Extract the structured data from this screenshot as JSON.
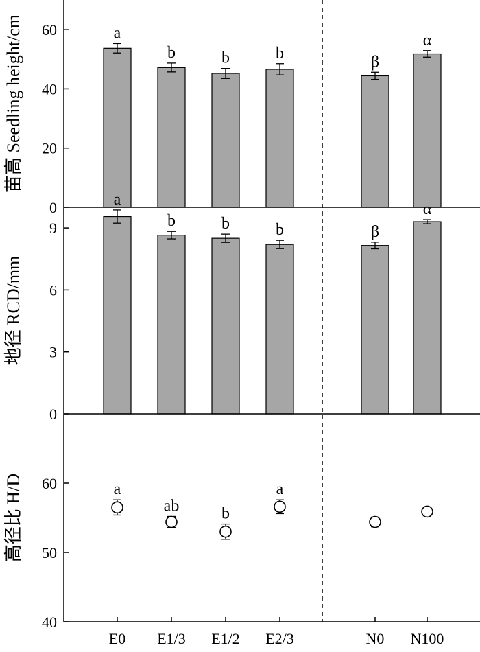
{
  "chart_data": {
    "type": "bar",
    "categories": [
      "E0",
      "E1/3",
      "E1/2",
      "E2/3",
      "N0",
      "N100"
    ],
    "group_divider_between": [
      "E2/3",
      "N0"
    ],
    "panels": [
      {
        "type": "bar",
        "ylabel": "苗高 Seedling height/cm",
        "ylim": [
          0,
          70
        ],
        "yticks": [
          0,
          20,
          40,
          60
        ],
        "values": [
          53.7,
          47.2,
          45.2,
          46.6,
          44.4,
          51.8
        ],
        "errors": [
          1.6,
          1.5,
          1.7,
          1.9,
          1.2,
          1.1
        ],
        "letters": [
          "a",
          "b",
          "b",
          "b",
          "β",
          "α"
        ]
      },
      {
        "type": "bar",
        "ylabel": "地径 RCD/mm",
        "ylim": [
          0,
          10
        ],
        "yticks": [
          0,
          3,
          6,
          9
        ],
        "values": [
          9.55,
          8.65,
          8.5,
          8.2,
          8.15,
          9.3
        ],
        "errors": [
          0.32,
          0.18,
          0.2,
          0.2,
          0.16,
          0.1
        ],
        "letters": [
          "a",
          "b",
          "b",
          "b",
          "β",
          "α"
        ]
      },
      {
        "type": "scatter",
        "ylabel": "高径比 H/D",
        "ylim": [
          40,
          70
        ],
        "yticks": [
          40,
          50,
          60
        ],
        "values": [
          56.5,
          54.4,
          53.0,
          56.6,
          54.4,
          55.9
        ],
        "errors": [
          1.1,
          0.8,
          1.1,
          1.0,
          0.7,
          0.6
        ],
        "letters": [
          "a",
          "ab",
          "b",
          "a",
          "",
          ""
        ]
      }
    ]
  }
}
